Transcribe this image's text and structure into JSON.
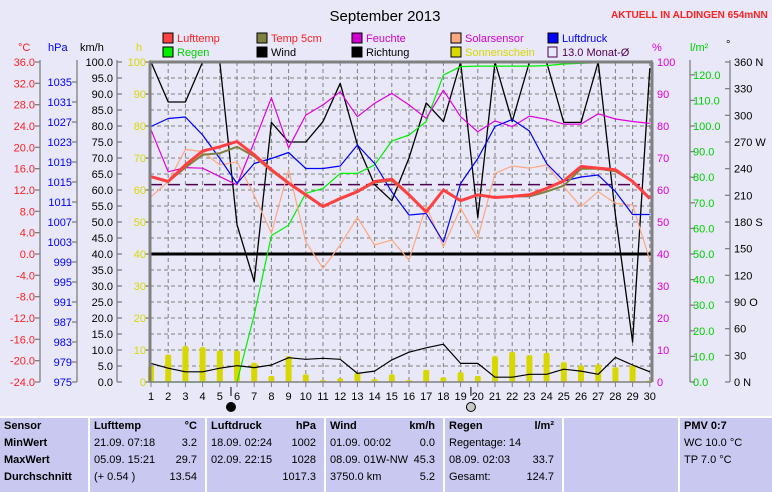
{
  "header": {
    "title": "September 2013",
    "aktuell": "AKTUELL IN ALDINGEN 654mNN"
  },
  "colors": {
    "background": "#E8E8F8",
    "table_bg": "#C8C8F0",
    "lufttemp": "#FF4040",
    "temp5cm": "#808040",
    "feuchte": "#E000E0",
    "solar": "#FFA880",
    "luftdruck": "#0000FF",
    "regen": "#00F000",
    "wind": "#000000",
    "richtung": "#000000",
    "sonne": "#D8D800",
    "monat": "#500050"
  },
  "chart_data": {
    "type": "line",
    "title": "September 2013",
    "x": [
      1,
      2,
      3,
      4,
      5,
      6,
      7,
      8,
      9,
      10,
      11,
      12,
      13,
      14,
      15,
      16,
      17,
      18,
      19,
      20,
      21,
      22,
      23,
      24,
      25,
      26,
      27,
      28,
      29,
      30
    ],
    "xlim": [
      1,
      30
    ],
    "grid": true,
    "axes": {
      "temp": {
        "unit": "°C",
        "range": [
          -24,
          36
        ],
        "ticks": [
          "36.0",
          "32.0",
          "28.0",
          "24.0",
          "20.0",
          "16.0",
          "12.0",
          "8.0",
          "4.0",
          "0.0",
          "-4.0",
          "-8.0",
          "-12.0",
          "-16.0",
          "-20.0",
          "-24.0"
        ]
      },
      "hpa": {
        "unit": "hPa",
        "range": [
          975,
          1039
        ],
        "ticks": [
          "1035",
          "1031",
          "1027",
          "1023",
          "1019",
          "1015",
          "1011",
          "1007",
          "1003",
          "999",
          "995",
          "991",
          "987",
          "983",
          "979",
          "975"
        ]
      },
      "kmh": {
        "unit": "km/h",
        "range": [
          0,
          100
        ],
        "ticks": [
          "100.0",
          "95.0",
          "90.0",
          "85.0",
          "80.0",
          "75.0",
          "70.0",
          "65.0",
          "60.0",
          "55.0",
          "50.0",
          "45.0",
          "40.0",
          "35.0",
          "30.0",
          "25.0",
          "20.0",
          "15.0",
          "10.0",
          "5.0",
          "0.0"
        ]
      },
      "h": {
        "unit": "h",
        "range": [
          0,
          100
        ],
        "ticks": [
          "100",
          "90",
          "80",
          "70",
          "60",
          "50",
          "40",
          "30",
          "20",
          "10",
          "0"
        ]
      },
      "pct": {
        "unit": "%",
        "range": [
          0,
          100
        ],
        "ticks": [
          "100",
          "90",
          "80",
          "70",
          "60",
          "50",
          "40",
          "30",
          "20",
          "10",
          "0"
        ]
      },
      "rain": {
        "unit": "l/m²",
        "range": [
          0,
          125
        ],
        "ticks": [
          "120.0",
          "110.0",
          "100.0",
          "90.0",
          "80.0",
          "70.0",
          "60.0",
          "50.0",
          "40.0",
          "30.0",
          "20.0",
          "10.0",
          "0.0"
        ]
      },
      "dir": {
        "unit": "°",
        "range": [
          0,
          360
        ],
        "ticks": [
          "360 N",
          "330",
          "300",
          "270 W",
          "240",
          "210",
          "180 S",
          "150",
          "120",
          "90  O",
          "60",
          "30",
          "0   N"
        ]
      }
    },
    "legend": [
      {
        "label": "Lufttemp",
        "color": "#FF4040",
        "text_color": "#FF2020"
      },
      {
        "label": "Temp 5cm",
        "color": "#808040",
        "text_color": "#FF2020"
      },
      {
        "label": "Feuchte",
        "color": "#D000D0",
        "text_color": "#D000D0"
      },
      {
        "label": "Solarsensor",
        "color": "#FFA880",
        "text_color": "#D000D0"
      },
      {
        "label": "Luftdruck",
        "color": "#0000FF",
        "text_color": "#0000FF"
      },
      {
        "label": "Regen",
        "color": "#00F000",
        "text_color": "#00D000"
      },
      {
        "label": "Wind",
        "color": "#000000",
        "text_color": "#000000"
      },
      {
        "label": "Richtung",
        "color": "#000000",
        "text_color": "#000000"
      },
      {
        "label": "Sonnenschein",
        "color": "#D8D800",
        "text_color": "#D8D800"
      },
      {
        "label": "13.0 Monat-Ø",
        "color": "none",
        "text_color": "#500050"
      }
    ],
    "series": [
      {
        "name": "Richtung",
        "axis": "dir",
        "kind": "line",
        "color": "#000000",
        "width": 1.3,
        "values": [
          360,
          315,
          315,
          360,
          360,
          177,
          113,
          292,
          270,
          270,
          293,
          336,
          267,
          222,
          204,
          252,
          314,
          293,
          360,
          185,
          360,
          293,
          360,
          360,
          292,
          292,
          360,
          188,
          45,
          353
        ]
      },
      {
        "name": "Regen",
        "axis": "rain",
        "kind": "line",
        "color": "#00F000",
        "width": 1.2,
        "values": [
          0,
          0,
          0,
          0,
          0,
          0,
          26.2,
          57.2,
          61.3,
          73.7,
          75.6,
          81.5,
          81.5,
          84.8,
          94.1,
          96.5,
          101.7,
          119.9,
          123.2,
          123.4,
          123.4,
          123.4,
          123.4,
          123.6,
          124.2,
          124.5,
          124.7,
          124.7,
          124.7,
          124.7
        ]
      },
      {
        "name": "Solarsensor",
        "axis": "pct",
        "kind": "line",
        "color": "#FFA880",
        "width": 1.2,
        "values": [
          57.9,
          62.6,
          72.7,
          72.0,
          67.8,
          68.8,
          58.4,
          46.5,
          66.3,
          43.8,
          35.5,
          42.8,
          51.4,
          42.8,
          44.4,
          38.1,
          55,
          42.3,
          54.3,
          44.9,
          65.2,
          67.5,
          66.8,
          67.8,
          61.0,
          54.8,
          59.5,
          55.8,
          55.3,
          38.1
        ]
      },
      {
        "name": "Feuchte",
        "axis": "pct",
        "kind": "line",
        "color": "#E000E0",
        "width": 1.2,
        "values": [
          78.8,
          65.7,
          67.0,
          66.8,
          64.2,
          61.6,
          75,
          88.8,
          73.2,
          83.4,
          86.6,
          90.7,
          82.9,
          87.1,
          90.2,
          86.6,
          82.4,
          91.2,
          82.9,
          78.2,
          81.6,
          79.8,
          83.1,
          82.1,
          80.6,
          80.6,
          83.8,
          82.2,
          81.4,
          80.8
        ]
      },
      {
        "name": "Luftdruck",
        "axis": "hpa",
        "kind": "line",
        "color": "#0000FF",
        "width": 1.2,
        "values": [
          1026.1,
          1027.7,
          1028,
          1024.4,
          1019.7,
          1014.7,
          1018.7,
          1019.7,
          1020.9,
          1017.7,
          1017.7,
          1018.2,
          1022.4,
          1018.7,
          1013,
          1008.4,
          1008.7,
          1003,
          1014.7,
          1019.7,
          1026.1,
          1027.5,
          1025.2,
          1018.7,
          1015.2,
          1016,
          1016.4,
          1013.1,
          1008.5,
          1008.5
        ]
      },
      {
        "name": "Wind",
        "axis": "kmh",
        "kind": "line",
        "color": "#000000",
        "width": 1.2,
        "values": [
          5.8,
          4.3,
          3.2,
          3.2,
          4.3,
          5.1,
          4.5,
          5.3,
          7.6,
          7.1,
          7.4,
          7.1,
          2.7,
          3.4,
          6.9,
          9.3,
          10.7,
          11.8,
          5.8,
          5.8,
          1.5,
          1.5,
          2.4,
          2.4,
          4.0,
          3.4,
          2.4,
          7.7,
          5.3,
          3.2
        ]
      },
      {
        "name": "Temp 5cm",
        "axis": "temp",
        "kind": "line",
        "color": "#808040",
        "width": 2,
        "values": [
          14.5,
          13.6,
          16.2,
          18.6,
          18.9,
          20.1,
          18.3,
          15.6,
          13.2,
          11.0,
          8.9,
          10.3,
          11.6,
          13.4,
          13.8,
          11.0,
          7.9,
          11.9,
          10.0,
          11.1,
          10.6,
          10.8,
          10.8,
          11.7,
          12.8,
          16.0,
          16.0,
          15.5,
          13.6,
          10.4
        ]
      },
      {
        "name": "Lufttemp",
        "axis": "temp",
        "kind": "line",
        "color": "#FF4040",
        "width": 3,
        "values": [
          14.5,
          13.6,
          16.7,
          19.3,
          20.1,
          21.1,
          18.6,
          15.8,
          13.3,
          11.1,
          8.9,
          10.4,
          11.7,
          13.6,
          14.0,
          11.1,
          7.9,
          12.0,
          10.0,
          11.1,
          10.6,
          10.8,
          11.1,
          12.3,
          13.7,
          16.4,
          16.1,
          15.8,
          13.6,
          10.4
        ]
      },
      {
        "name": "Sonnenschein",
        "axis": "h",
        "kind": "bar",
        "color": "#D8D800",
        "values": [
          5.0,
          8.6,
          11.2,
          10.9,
          9.8,
          9.8,
          6.0,
          1.9,
          8.1,
          2.4,
          0.6,
          1.2,
          2.9,
          0.9,
          2.4,
          0.6,
          3.8,
          1.5,
          3.1,
          1.9,
          8.1,
          9.4,
          8.4,
          9.1,
          6.2,
          5.2,
          5.5,
          4.6,
          5.2,
          0.5
        ]
      }
    ],
    "monat_avg": {
      "label": "13.0 Monat-Ø",
      "axis": "temp",
      "value": 13.0
    },
    "zero_line": {
      "axis": "temp",
      "value": 0
    },
    "moon_phases": [
      {
        "type": "new",
        "day": 5.65
      },
      {
        "type": "full",
        "day": 19.6
      }
    ]
  },
  "table": {
    "sensor": {
      "header": "Sensor",
      "rows": [
        "MinWert",
        "MaxWert",
        "Durchschnitt"
      ]
    },
    "lufttemp": {
      "header": "Lufttemp",
      "unit": "°C",
      "rows": [
        [
          "21.09.  07:18",
          "3.2"
        ],
        [
          "05.09.  15:21",
          "29.7"
        ],
        [
          "(+ 0.54 )",
          "13.54"
        ]
      ]
    },
    "luftdruck": {
      "header": "Luftdruck",
      "unit": "hPa",
      "rows": [
        [
          "18.09.  02:24",
          "1002"
        ],
        [
          "02.09.  22:15",
          "1028"
        ],
        [
          "",
          "1017.3"
        ]
      ]
    },
    "wind": {
      "header": "Wind",
      "unit": "km/h",
      "rows": [
        [
          "01.09.  00:02",
          "0.0"
        ],
        [
          "08.09.  01W-NW",
          "45.3"
        ],
        [
          "3750.0 km",
          "5.2"
        ]
      ]
    },
    "regen": {
      "header": "Regen",
      "unit": "l/m²",
      "rows": [
        [
          "Regentage: 14",
          ""
        ],
        [
          "08.09.  02:03",
          "33.7"
        ],
        [
          "Gesamt:",
          "124.7"
        ]
      ]
    },
    "pmv": {
      "header": "PMV 0:7",
      "rows": [
        "WC 10.0 °C",
        "TP 7.0 °C"
      ]
    }
  }
}
